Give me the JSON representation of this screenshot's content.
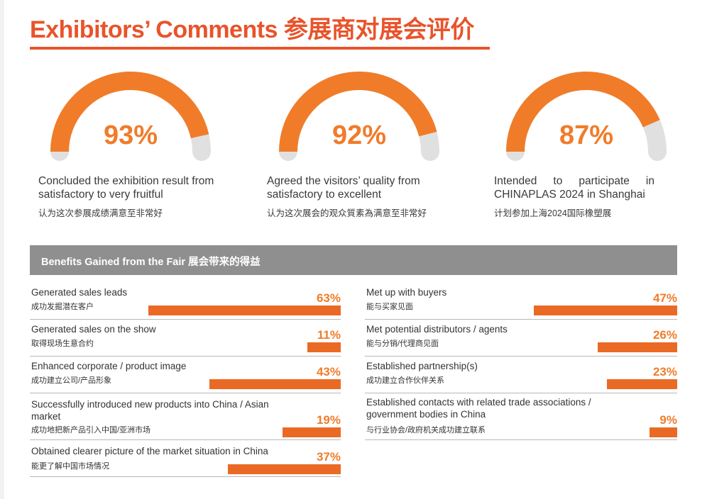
{
  "header": {
    "title": "Exhibitors’ Comments 参展商对展会评价"
  },
  "accent_colors": {
    "orange": "#f07c2a",
    "bar": "#ea6a25",
    "gray_track": "#e0e0e0",
    "banner": "#8f8f8f"
  },
  "stats": [
    {
      "pct_label": "93%",
      "value": 93,
      "en": "Concluded the exhibition result from satisfactory to very fruitful",
      "zh": "认为这次参展成绩满意至非常好"
    },
    {
      "pct_label": "92%",
      "value": 92,
      "en": "Agreed the visitors’ quality from satisfactory to excellent",
      "zh": "认为这次展会的观众質素為满意至非常好"
    },
    {
      "pct_label": "87%",
      "value": 87,
      "en": "Intended to participate in CHINAPLAS 2024 in Shanghai",
      "zh": "计划参加上海2024国际橡塑展"
    }
  ],
  "benefits": {
    "heading": "Benefits Gained from the Fair 展会带来的得益",
    "left": [
      {
        "en": "Generated sales leads",
        "zh": "成功发掘潜在客户",
        "pct_label": "63%",
        "value": 63
      },
      {
        "en": "Generated sales on the show",
        "zh": "取得现场生意合约",
        "pct_label": "11%",
        "value": 11
      },
      {
        "en": "Enhanced corporate / product image",
        "zh": "成功建立公司/产品形象",
        "pct_label": "43%",
        "value": 43
      },
      {
        "en": "Successfully introduced new products into China / Asian market",
        "zh": "成功地把新产品引入中国/亚洲市场",
        "pct_label": "19%",
        "value": 19
      },
      {
        "en": "Obtained clearer picture of the market situation in China",
        "zh": "能更了解中国市场情况",
        "pct_label": "37%",
        "value": 37
      }
    ],
    "right": [
      {
        "en": "Met up with buyers",
        "zh": "能与买家见面",
        "pct_label": "47%",
        "value": 47
      },
      {
        "en": "Met potential distributors / agents",
        "zh": "能与分销/代理商见面",
        "pct_label": "26%",
        "value": 26
      },
      {
        "en": "Established partnership(s)",
        "zh": "成功建立合作伙伴关系",
        "pct_label": "23%",
        "value": 23
      },
      {
        "en": "Established contacts with related trade associations / government bodies in China",
        "zh": "与行业协会/政府机关成功建立联系",
        "pct_label": "9%",
        "value": 9
      }
    ]
  }
}
